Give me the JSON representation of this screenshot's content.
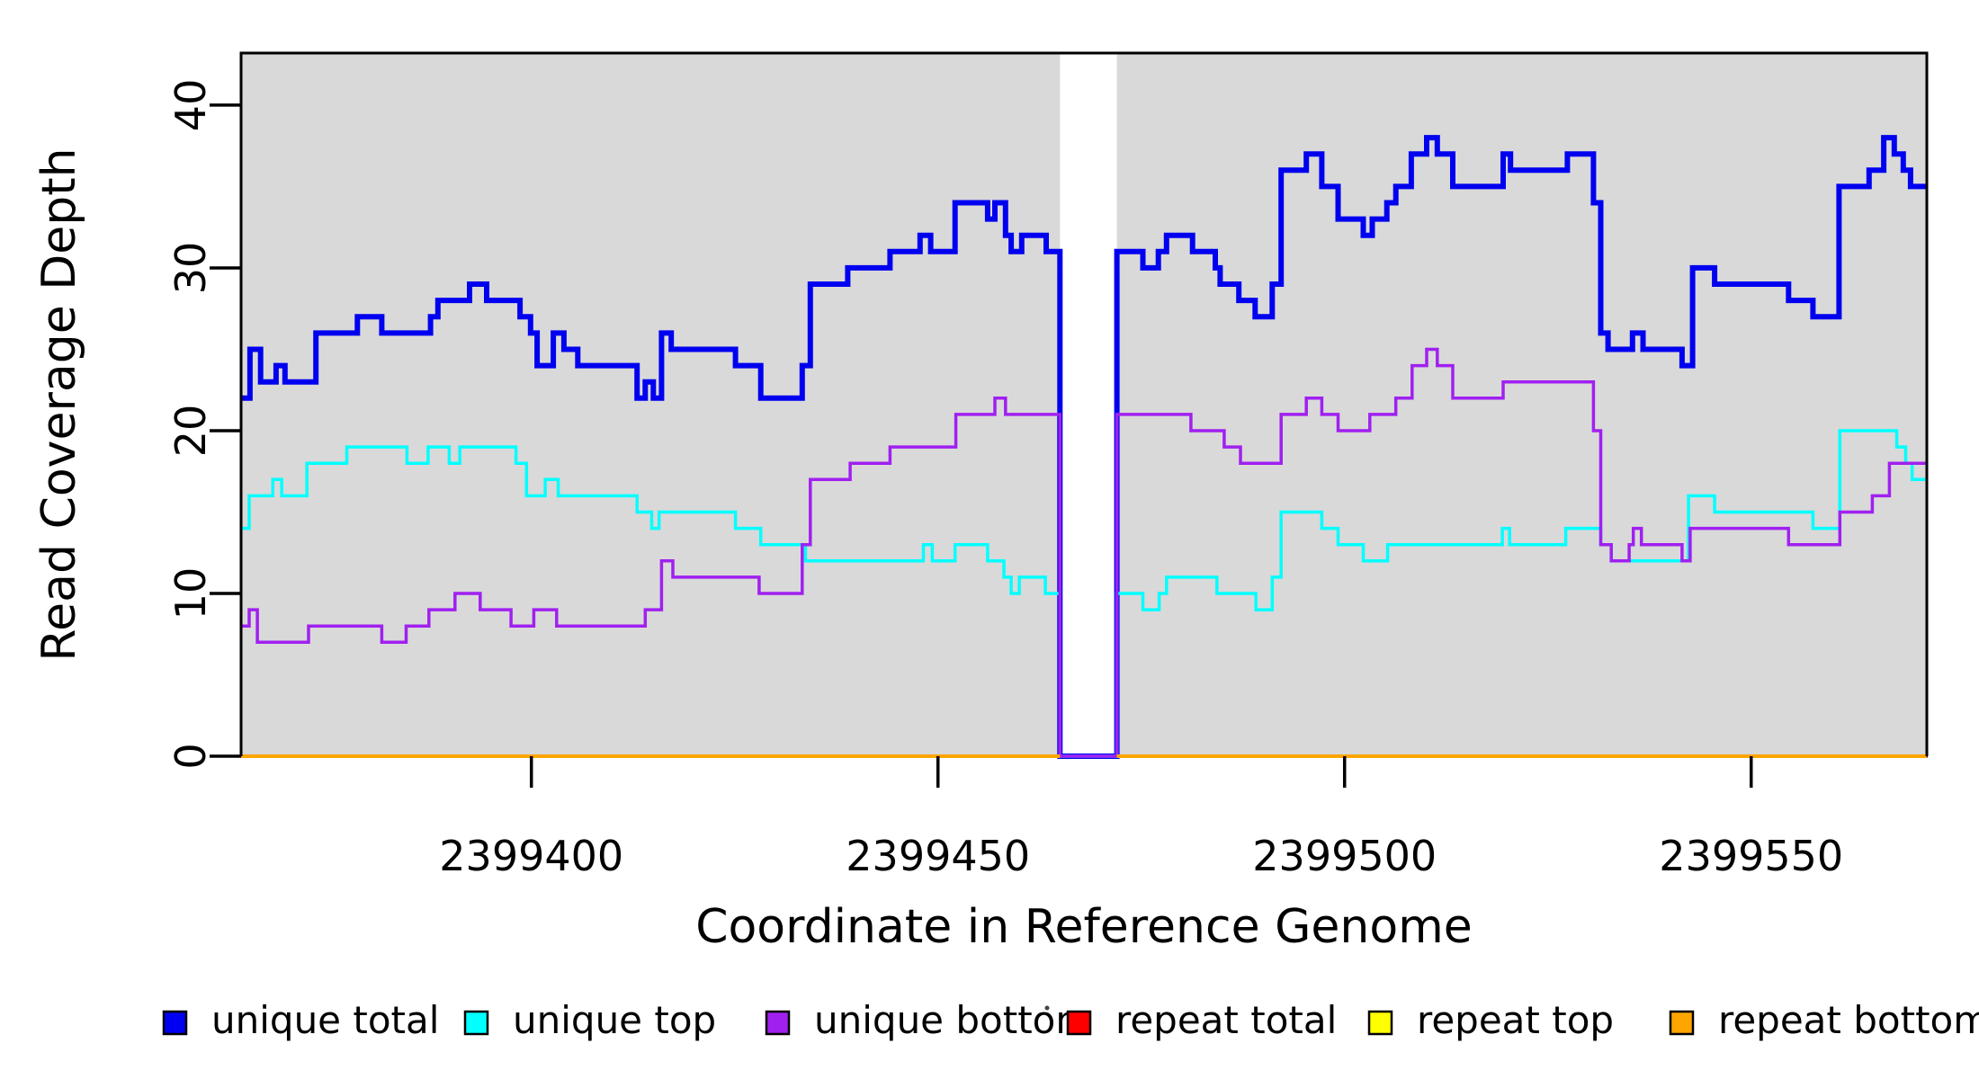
{
  "figure": {
    "kind": "R-style coverage step plot",
    "background_color": "#ffffff",
    "plot_background_color": "#D9D9D9",
    "border_color": "#000000"
  },
  "chart_data": {
    "type": "line",
    "subtype": "step-after",
    "title": "",
    "xlabel": "Coordinate in Reference Genome",
    "ylabel": "Read Coverage Depth",
    "x_range": [
      2399364.3,
      2399571.6
    ],
    "y_range": [
      0,
      43.2
    ],
    "x_ticks": [
      2399400,
      2399450,
      2399500,
      2399550
    ],
    "y_ticks": [
      0,
      10,
      20,
      30,
      40
    ],
    "grid": false,
    "legend_position": "bottom",
    "shaded_regions": [
      [
        2399364.3,
        2399465.0
      ],
      [
        2399472.0,
        2399571.6
      ]
    ],
    "gap_region": [
      2399465.0,
      2399472.0
    ],
    "gap_note": "white unshaded band; unique-series coverage drops to 0 across it, repeat series have no segment there",
    "series": [
      {
        "name": "unique total",
        "color": "#0000F0",
        "width": 6,
        "parts": [
          [
            [
              2399364.3,
              22
            ],
            [
              2399365.4,
              25
            ],
            [
              2399366.7,
              23
            ],
            [
              2399368.6,
              24
            ],
            [
              2399369.7,
              23
            ],
            [
              2399373.5,
              26
            ],
            [
              2399378.6,
              27
            ],
            [
              2399381.6,
              26
            ],
            [
              2399387.6,
              27
            ],
            [
              2399388.5,
              28
            ],
            [
              2399392.4,
              29
            ],
            [
              2399394.5,
              28
            ],
            [
              2399398.6,
              27
            ],
            [
              2399399.9,
              26
            ],
            [
              2399400.7,
              24
            ],
            [
              2399402.7,
              26
            ],
            [
              2399404.0,
              25
            ],
            [
              2399405.7,
              24
            ],
            [
              2399413.0,
              22
            ],
            [
              2399414.0,
              23
            ],
            [
              2399415.0,
              22
            ],
            [
              2399416.0,
              26
            ],
            [
              2399417.2,
              25
            ],
            [
              2399425.1,
              24
            ],
            [
              2399428.2,
              22
            ],
            [
              2399433.3,
              24
            ],
            [
              2399434.3,
              29
            ],
            [
              2399438.9,
              30
            ],
            [
              2399444.1,
              31
            ],
            [
              2399447.8,
              32
            ],
            [
              2399449.1,
              31
            ],
            [
              2399452.1,
              34
            ],
            [
              2399456.1,
              33
            ],
            [
              2399457.0,
              34
            ],
            [
              2399458.3,
              32
            ],
            [
              2399459.0,
              31
            ],
            [
              2399460.3,
              32
            ],
            [
              2399463.3,
              31
            ],
            [
              2399465.0,
              0
            ],
            [
              2399472.0,
              31
            ],
            [
              2399475.2,
              30
            ],
            [
              2399477.1,
              31
            ],
            [
              2399478.1,
              32
            ],
            [
              2399481.3,
              31
            ],
            [
              2399484.1,
              30
            ],
            [
              2399484.7,
              29
            ],
            [
              2399487.0,
              28
            ],
            [
              2399489.0,
              27
            ],
            [
              2399491.1,
              29
            ],
            [
              2399492.2,
              36
            ],
            [
              2399495.3,
              37
            ],
            [
              2399497.2,
              35
            ],
            [
              2399499.2,
              33
            ],
            [
              2399502.3,
              32
            ],
            [
              2399503.4,
              33
            ],
            [
              2399505.2,
              34
            ],
            [
              2399506.3,
              35
            ],
            [
              2399508.2,
              37
            ],
            [
              2399510.1,
              38
            ],
            [
              2399511.4,
              37
            ],
            [
              2399513.3,
              35
            ],
            [
              2399519.5,
              37
            ],
            [
              2399520.4,
              36
            ],
            [
              2399527.4,
              37
            ],
            [
              2399530.6,
              34
            ],
            [
              2399531.5,
              26
            ],
            [
              2399532.4,
              25
            ],
            [
              2399535.4,
              26
            ],
            [
              2399536.7,
              25
            ],
            [
              2399541.5,
              24
            ],
            [
              2399542.8,
              30
            ],
            [
              2399545.5,
              29
            ],
            [
              2399554.6,
              28
            ],
            [
              2399557.6,
              27
            ],
            [
              2399560.8,
              35
            ],
            [
              2399564.5,
              36
            ],
            [
              2399566.3,
              38
            ],
            [
              2399567.6,
              37
            ],
            [
              2399568.7,
              36
            ],
            [
              2399569.6,
              35
            ],
            [
              2399571.6,
              35
            ]
          ]
        ]
      },
      {
        "name": "unique top",
        "color": "#00FFFF",
        "width": 3.5,
        "parts": [
          [
            [
              2399364.3,
              14
            ],
            [
              2399365.3,
              16
            ],
            [
              2399368.2,
              17
            ],
            [
              2399369.3,
              16
            ],
            [
              2399372.4,
              18
            ],
            [
              2399377.3,
              19
            ],
            [
              2399384.7,
              18
            ],
            [
              2399387.3,
              19
            ],
            [
              2399389.9,
              18
            ],
            [
              2399391.2,
              19
            ],
            [
              2399398.1,
              18
            ],
            [
              2399399.4,
              16
            ],
            [
              2399401.7,
              17
            ],
            [
              2399403.3,
              16
            ],
            [
              2399413.0,
              15
            ],
            [
              2399414.8,
              14
            ],
            [
              2399415.7,
              15
            ],
            [
              2399425.1,
              14
            ],
            [
              2399428.2,
              13
            ],
            [
              2399433.7,
              12
            ],
            [
              2399448.2,
              13
            ],
            [
              2399449.3,
              12
            ],
            [
              2399452.1,
              13
            ],
            [
              2399456.1,
              12
            ],
            [
              2399458.1,
              11
            ],
            [
              2399459.0,
              10
            ],
            [
              2399460.0,
              11
            ],
            [
              2399463.2,
              10
            ],
            [
              2399465.0,
              0
            ],
            [
              2399472.0,
              10
            ],
            [
              2399475.2,
              9
            ],
            [
              2399477.2,
              10
            ],
            [
              2399478.1,
              11
            ],
            [
              2399484.3,
              10
            ],
            [
              2399489.1,
              9
            ],
            [
              2399491.1,
              11
            ],
            [
              2399492.2,
              15
            ],
            [
              2399497.2,
              14
            ],
            [
              2399499.2,
              13
            ],
            [
              2399502.3,
              12
            ],
            [
              2399505.3,
              13
            ],
            [
              2399519.4,
              14
            ],
            [
              2399520.3,
              13
            ],
            [
              2399527.2,
              14
            ],
            [
              2399531.5,
              13
            ],
            [
              2399532.8,
              12
            ],
            [
              2399542.3,
              16
            ],
            [
              2399545.5,
              15
            ],
            [
              2399557.6,
              14
            ],
            [
              2399560.9,
              20
            ],
            [
              2399567.9,
              19
            ],
            [
              2399569.0,
              18
            ],
            [
              2399569.8,
              17
            ],
            [
              2399571.6,
              17
            ]
          ]
        ]
      },
      {
        "name": "unique bottom",
        "color": "#A020F0",
        "width": 3.5,
        "parts": [
          [
            [
              2399364.3,
              8
            ],
            [
              2399365.3,
              9
            ],
            [
              2399366.3,
              7
            ],
            [
              2399372.6,
              8
            ],
            [
              2399381.6,
              7
            ],
            [
              2399384.6,
              8
            ],
            [
              2399387.4,
              9
            ],
            [
              2399390.6,
              10
            ],
            [
              2399393.7,
              9
            ],
            [
              2399397.5,
              8
            ],
            [
              2399400.3,
              9
            ],
            [
              2399403.1,
              8
            ],
            [
              2399414.0,
              9
            ],
            [
              2399416.0,
              12
            ],
            [
              2399417.4,
              11
            ],
            [
              2399428.0,
              10
            ],
            [
              2399433.3,
              13
            ],
            [
              2399434.3,
              17
            ],
            [
              2399439.2,
              18
            ],
            [
              2399444.1,
              19
            ],
            [
              2399452.2,
              21
            ],
            [
              2399457.0,
              22
            ],
            [
              2399458.3,
              21
            ],
            [
              2399465.0,
              0
            ],
            [
              2399472.0,
              21
            ],
            [
              2399481.1,
              20
            ],
            [
              2399485.2,
              19
            ],
            [
              2399487.2,
              18
            ],
            [
              2399492.2,
              21
            ],
            [
              2399495.3,
              22
            ],
            [
              2399497.2,
              21
            ],
            [
              2399499.2,
              20
            ],
            [
              2399503.1,
              21
            ],
            [
              2399506.3,
              22
            ],
            [
              2399508.3,
              24
            ],
            [
              2399510.1,
              25
            ],
            [
              2399511.4,
              24
            ],
            [
              2399513.3,
              22
            ],
            [
              2399519.5,
              23
            ],
            [
              2399530.6,
              20
            ],
            [
              2399531.5,
              13
            ],
            [
              2399532.8,
              12
            ],
            [
              2399535.0,
              13
            ],
            [
              2399535.5,
              14
            ],
            [
              2399536.5,
              13
            ],
            [
              2399541.5,
              12
            ],
            [
              2399542.5,
              14
            ],
            [
              2399554.6,
              13
            ],
            [
              2399560.9,
              15
            ],
            [
              2399564.9,
              16
            ],
            [
              2399567.0,
              18
            ],
            [
              2399571.6,
              18
            ]
          ]
        ]
      },
      {
        "name": "repeat total",
        "color": "#FF0000",
        "width": 4,
        "parts": [
          [
            [
              2399364.3,
              0
            ],
            [
              2399465.0,
              0
            ]
          ],
          [
            [
              2399472.0,
              0
            ],
            [
              2399571.6,
              0
            ]
          ]
        ]
      },
      {
        "name": "repeat top",
        "color": "#FFFF00",
        "width": 4,
        "parts": [
          [
            [
              2399364.3,
              0
            ],
            [
              2399465.0,
              0
            ]
          ],
          [
            [
              2399472.0,
              0
            ],
            [
              2399571.6,
              0
            ]
          ]
        ]
      },
      {
        "name": "repeat bottom",
        "color": "#FFA500",
        "width": 4,
        "parts": [
          [
            [
              2399364.3,
              0
            ],
            [
              2399465.0,
              0
            ]
          ],
          [
            [
              2399472.0,
              0
            ],
            [
              2399571.6,
              0
            ]
          ]
        ]
      }
    ],
    "legend": [
      {
        "label": "unique total",
        "color": "#0000F0"
      },
      {
        "label": "unique top",
        "color": "#00FFFF"
      },
      {
        "label": "unique bottom",
        "color": "#A020F0"
      },
      {
        "label": "repeat total",
        "color": "#FF0000"
      },
      {
        "label": "repeat top",
        "color": "#FFFF00"
      },
      {
        "label": "repeat bottom",
        "color": "#FFA500"
      }
    ]
  }
}
